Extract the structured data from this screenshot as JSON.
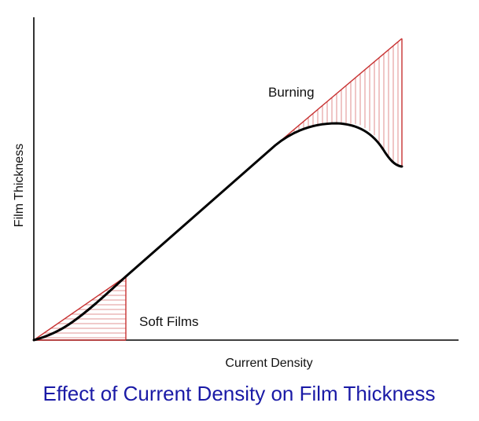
{
  "diagram": {
    "y_axis_label": "Film Thickness",
    "x_axis_label": "Current Density",
    "annotations": {
      "burning": "Burning",
      "soft_films": "Soft Films"
    },
    "caption": "Effect of Current Density on Film Thickness",
    "colors": {
      "curve": "#000000",
      "hatch_region": "#c83232",
      "caption": "#1a1aa6",
      "axes": "#000000"
    }
  }
}
